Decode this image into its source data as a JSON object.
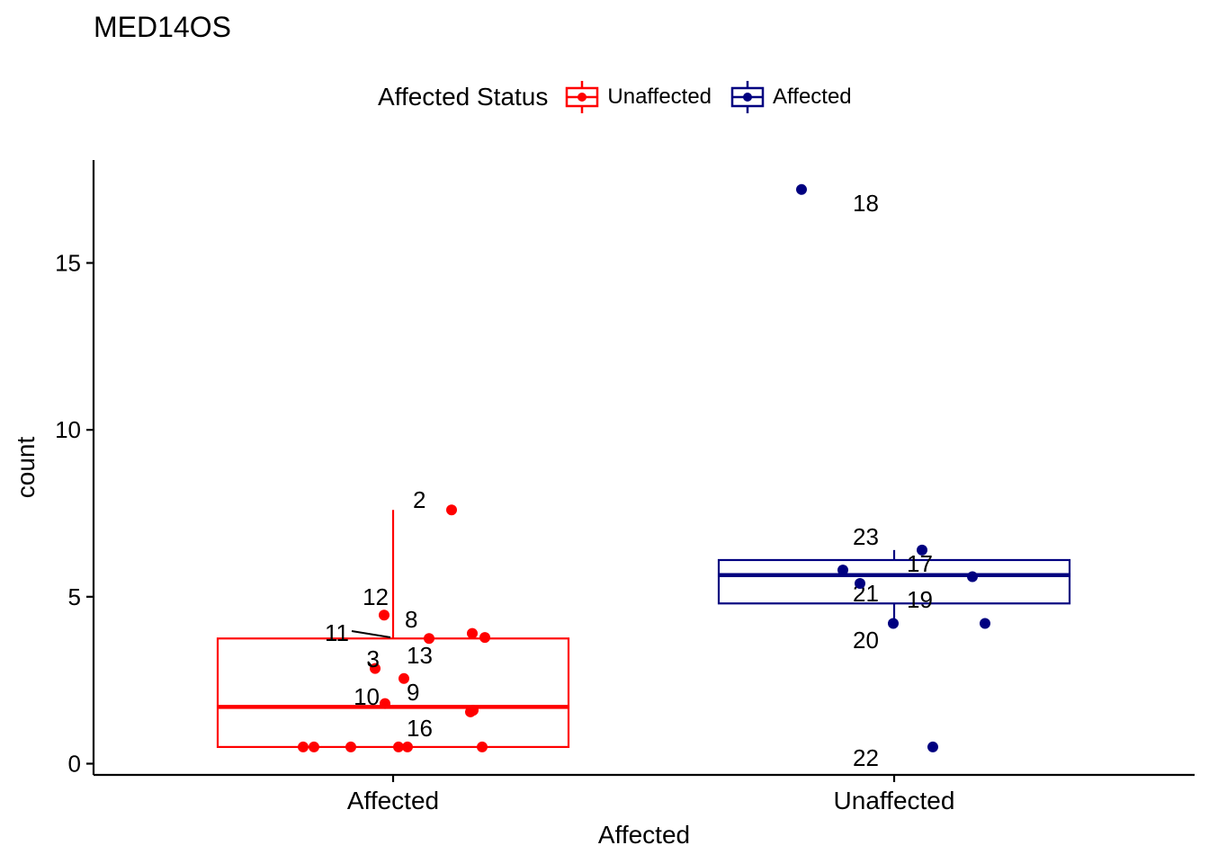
{
  "chart_data": {
    "type": "boxplot",
    "title": "MED14OS",
    "xlabel": "Affected",
    "ylabel": "count",
    "categories": [
      "Affected",
      "Unaffected"
    ],
    "ylim": [
      -0.3,
      18.2
    ],
    "yticks": [
      0,
      5,
      10,
      15
    ],
    "grid": false,
    "legend": {
      "title": "Affected Status",
      "position": "top",
      "entries": [
        {
          "name": "Unaffected",
          "color": "#ff0000"
        },
        {
          "name": "Affected",
          "color": "#000080"
        }
      ]
    },
    "series": [
      {
        "name": "Unaffected",
        "category": "Affected",
        "color": "#ff0000",
        "box": {
          "whisker_low": 0.5,
          "q1": 0.5,
          "median": 1.7,
          "q3": 3.75,
          "whisker_high": 7.6
        },
        "points": [
          {
            "label": "2",
            "y": 7.6
          },
          {
            "label": "12",
            "y": 4.45
          },
          {
            "label": "8",
            "y": 3.75
          },
          {
            "label": "11",
            "y": 3.9
          },
          {
            "label": "",
            "y": 3.78
          },
          {
            "label": "3",
            "y": 2.85
          },
          {
            "label": "13",
            "y": 2.55
          },
          {
            "label": "10",
            "y": 1.8
          },
          {
            "label": "9",
            "y": 1.6
          },
          {
            "label": "",
            "y": 1.55
          },
          {
            "label": "16",
            "y": 0.5
          },
          {
            "label": "",
            "y": 0.5
          },
          {
            "label": "",
            "y": 0.5
          },
          {
            "label": "",
            "y": 0.5
          },
          {
            "label": "",
            "y": 0.5
          },
          {
            "label": "",
            "y": 0.5
          }
        ]
      },
      {
        "name": "Affected",
        "category": "Unaffected",
        "color": "#000080",
        "box": {
          "whisker_low": 4.2,
          "q1": 4.8,
          "median": 5.65,
          "q3": 6.1,
          "whisker_high": 6.4
        },
        "points": [
          {
            "label": "18",
            "y": 17.2
          },
          {
            "label": "23",
            "y": 6.4
          },
          {
            "label": "17",
            "y": 5.6
          },
          {
            "label": "21",
            "y": 5.8
          },
          {
            "label": "",
            "y": 5.4
          },
          {
            "label": "19",
            "y": 4.2
          },
          {
            "label": "20",
            "y": 4.2
          },
          {
            "label": "22",
            "y": 0.5
          }
        ]
      }
    ]
  }
}
